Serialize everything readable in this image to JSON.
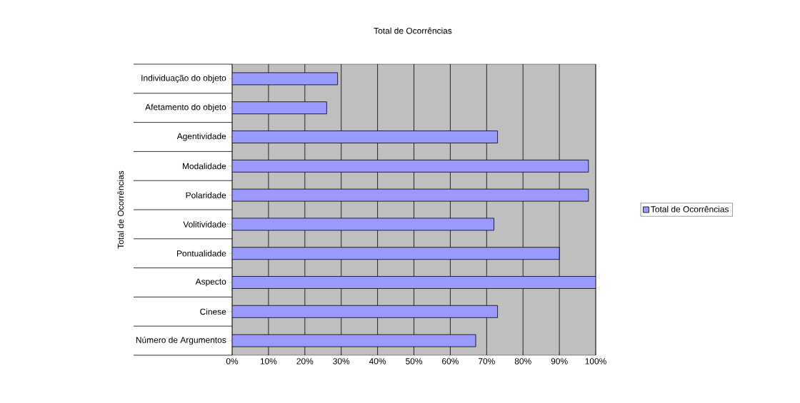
{
  "chart_data": {
    "type": "bar",
    "orientation": "horizontal",
    "title": "Total de Ocorrências",
    "ylabel": "Total de Ocorrências",
    "categories": [
      "Individuação do objeto",
      "Afetamento do objeto",
      "Agentividade",
      "Modalidade",
      "Polaridade",
      "Volitividade",
      "Pontualidade",
      "Aspecto",
      "Cinese",
      "Número de Argumentos"
    ],
    "series": [
      {
        "name": "Total de Ocorrências",
        "color": "#9999ff",
        "values": [
          29,
          26,
          73,
          98,
          98,
          72,
          90,
          100,
          73,
          67
        ]
      }
    ],
    "xlim": [
      0,
      100
    ],
    "xticks": [
      {
        "value": 0,
        "label": "0%"
      },
      {
        "value": 10,
        "label": "10%"
      },
      {
        "value": 20,
        "label": "20%"
      },
      {
        "value": 30,
        "label": "30%"
      },
      {
        "value": 40,
        "label": "40%"
      },
      {
        "value": 50,
        "label": "50%"
      },
      {
        "value": 60,
        "label": "60%"
      },
      {
        "value": 70,
        "label": "70%"
      },
      {
        "value": 80,
        "label": "80%"
      },
      {
        "value": 90,
        "label": "90%"
      },
      {
        "value": 100,
        "label": "100%"
      }
    ],
    "grid": "x",
    "legend": "right"
  }
}
